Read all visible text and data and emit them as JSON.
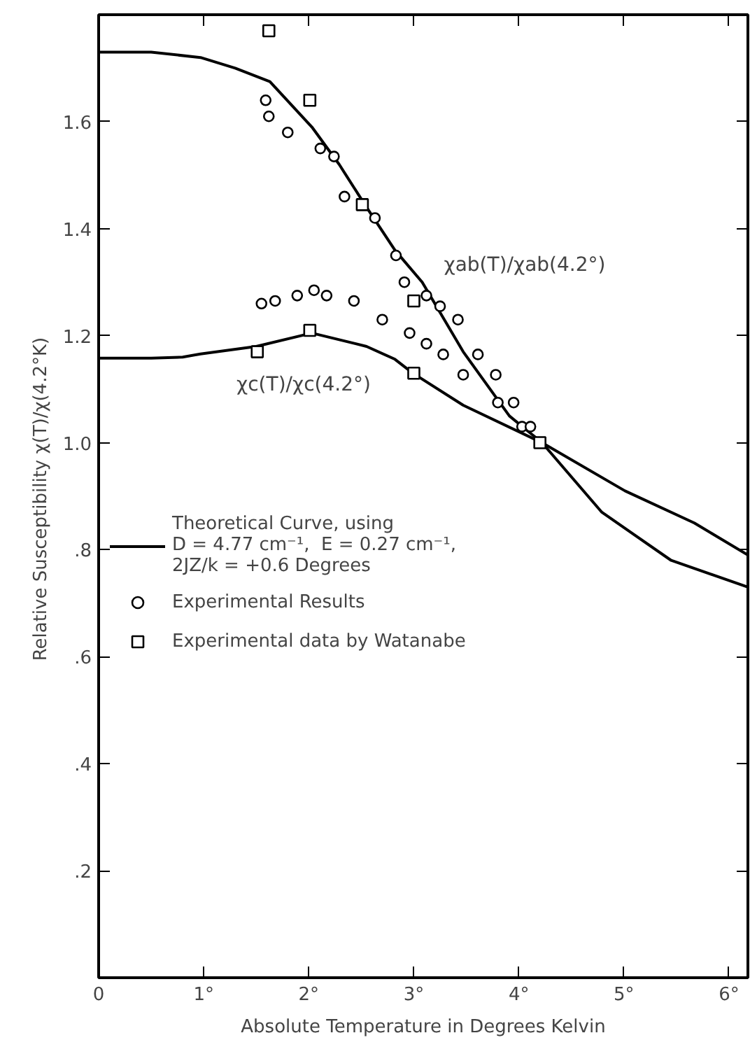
{
  "chart_data": {
    "type": "line",
    "xlabel": "Absolute Temperature in Degrees Kelvin",
    "ylabel": "Relative Susceptibility  χ(T)/χ(4.2°K)",
    "xlim": [
      0,
      6.18
    ],
    "ylim": [
      0,
      1.8
    ],
    "xticks": [
      0,
      {
        "value": 1,
        "label": "1°"
      },
      {
        "value": 2,
        "label": "2°"
      },
      {
        "value": 3,
        "label": "3°"
      },
      {
        "value": 4,
        "label": "4°"
      },
      {
        "value": 5,
        "label": "5°"
      },
      {
        "value": 6,
        "label": "6°"
      }
    ],
    "yticks": [
      {
        "value": 0,
        "label": null
      },
      {
        "value": 0.2,
        "label": ".2"
      },
      {
        "value": 0.4,
        "label": ".4"
      },
      {
        "value": 0.6,
        "label": ".6"
      },
      {
        "value": 0.8,
        "label": ".8"
      },
      {
        "value": 1.0,
        "label": "1.0"
      },
      {
        "value": 1.2,
        "label": "1.2"
      },
      {
        "value": 1.4,
        "label": "1.4"
      },
      {
        "value": 1.6,
        "label": "1.6"
      }
    ],
    "grid": false,
    "legend": "center left",
    "series": [
      {
        "name": "Theoretical Curve, using\nD = 4.77 cm⁻¹,  E = 0.27 cm⁻¹,\n2JZ/k = +0.6 Degrees",
        "color": "#000000",
        "marker": "none",
        "line_style": "solid",
        "x": [
          0,
          0.5,
          0.97,
          1.3,
          1.63,
          2.03,
          2.29,
          2.55,
          2.82,
          3.08,
          3.47,
          3.91,
          4.22,
          4.79,
          5.45,
          6.18
        ],
        "values": [
          1.73,
          1.73,
          1.72,
          1.7,
          1.675,
          1.59,
          1.52,
          1.44,
          1.36,
          1.3,
          1.17,
          1.05,
          1.0,
          0.87,
          0.78,
          0.73
        ]
      },
      {
        "color": "#000000",
        "marker": "none",
        "line_style": "solid",
        "x": [
          0,
          0.5,
          0.8,
          0.97,
          1.5,
          2.03,
          2.55,
          2.82,
          2.99,
          3.47,
          4.22,
          5.01,
          5.67,
          6.18
        ],
        "values": [
          1.158,
          1.158,
          1.16,
          1.166,
          1.18,
          1.205,
          1.18,
          1.156,
          1.13,
          1.07,
          1.0,
          0.91,
          0.85,
          0.79
        ]
      },
      {
        "name": "Experimental Results",
        "type": "scatter",
        "color": "#000000",
        "marker": "circle",
        "x": [
          1.59,
          1.62,
          1.8,
          2.11,
          2.24,
          2.34,
          2.63,
          2.83,
          2.91,
          3.12,
          3.25,
          3.42,
          1.55,
          1.68,
          1.89,
          2.05,
          2.17,
          2.43,
          2.7,
          2.96,
          3.12,
          3.28,
          3.47,
          3.61,
          3.78,
          3.8,
          3.95,
          4.03,
          4.11
        ],
        "values": [
          1.64,
          1.61,
          1.58,
          1.55,
          1.535,
          1.46,
          1.42,
          1.35,
          1.3,
          1.275,
          1.255,
          1.23,
          1.26,
          1.265,
          1.275,
          1.285,
          1.275,
          1.265,
          1.23,
          1.205,
          1.185,
          1.165,
          1.127,
          1.165,
          1.127,
          1.075,
          1.075,
          1.03,
          1.03
        ]
      },
      {
        "name": "Experimental data by Watanabe",
        "type": "scatter",
        "color": "#000000",
        "marker": "square",
        "x": [
          1.62,
          2.01,
          2.51,
          3.0,
          1.51,
          2.01,
          3.0,
          4.2
        ],
        "values": [
          1.77,
          1.64,
          1.445,
          1.265,
          1.17,
          1.21,
          1.13,
          1.0
        ]
      }
    ],
    "annotations": [
      {
        "text": "χab(T)/χab(4.2°)",
        "x": 3.1,
        "y": 1.29
      },
      {
        "text": "χc(T)/χc(4.2°)",
        "x": 2.75,
        "y": 1.165
      }
    ]
  }
}
